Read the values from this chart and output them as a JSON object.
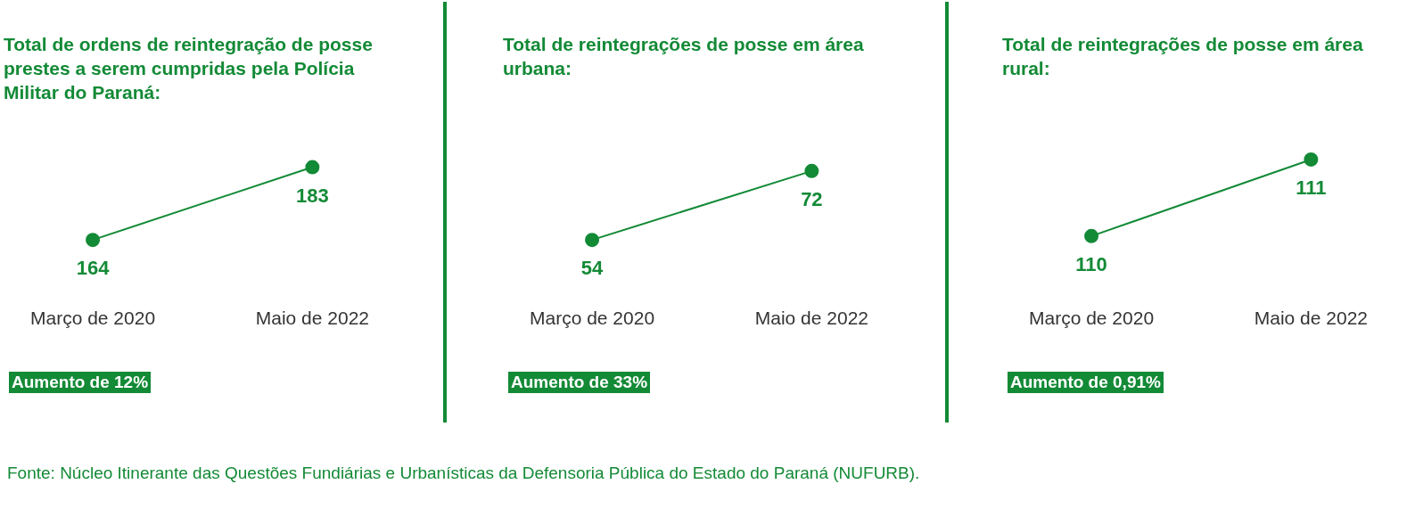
{
  "chart_data": [
    {
      "type": "line",
      "title": "Total de ordens de reintegração de posse prestes a serem cumpridas pela Polícia Militar do Paraná:",
      "categories": [
        "Março de 2020",
        "Maio de 2022"
      ],
      "values": [
        164,
        183
      ],
      "color": "#138a36",
      "marker": "circle",
      "line_style": "solid",
      "data_labels": true,
      "legend": false,
      "annotations": [
        "Aumento de 12%"
      ]
    },
    {
      "type": "line",
      "title": "Total de reintegrações de posse em área urbana:",
      "categories": [
        "Março de 2020",
        "Maio de 2022"
      ],
      "values": [
        54,
        72
      ],
      "color": "#138a36",
      "marker": "circle",
      "line_style": "solid",
      "data_labels": true,
      "legend": false,
      "annotations": [
        "Aumento de 33%"
      ]
    },
    {
      "type": "line",
      "title": "Total de reintegrações de posse em área rural:",
      "categories": [
        "Março de 2020",
        "Maio de 2022"
      ],
      "values": [
        110,
        111
      ],
      "color": "#138a36",
      "marker": "circle",
      "line_style": "solid",
      "data_labels": true,
      "legend": false,
      "annotations": [
        "Aumento de 0,91%",
        "Fonte: Núcleo Itinerante das Questões Fundiárias e Urbanísticas da Defensoria Pública do Estado do Paraná (NUFURB)."
      ]
    }
  ]
}
